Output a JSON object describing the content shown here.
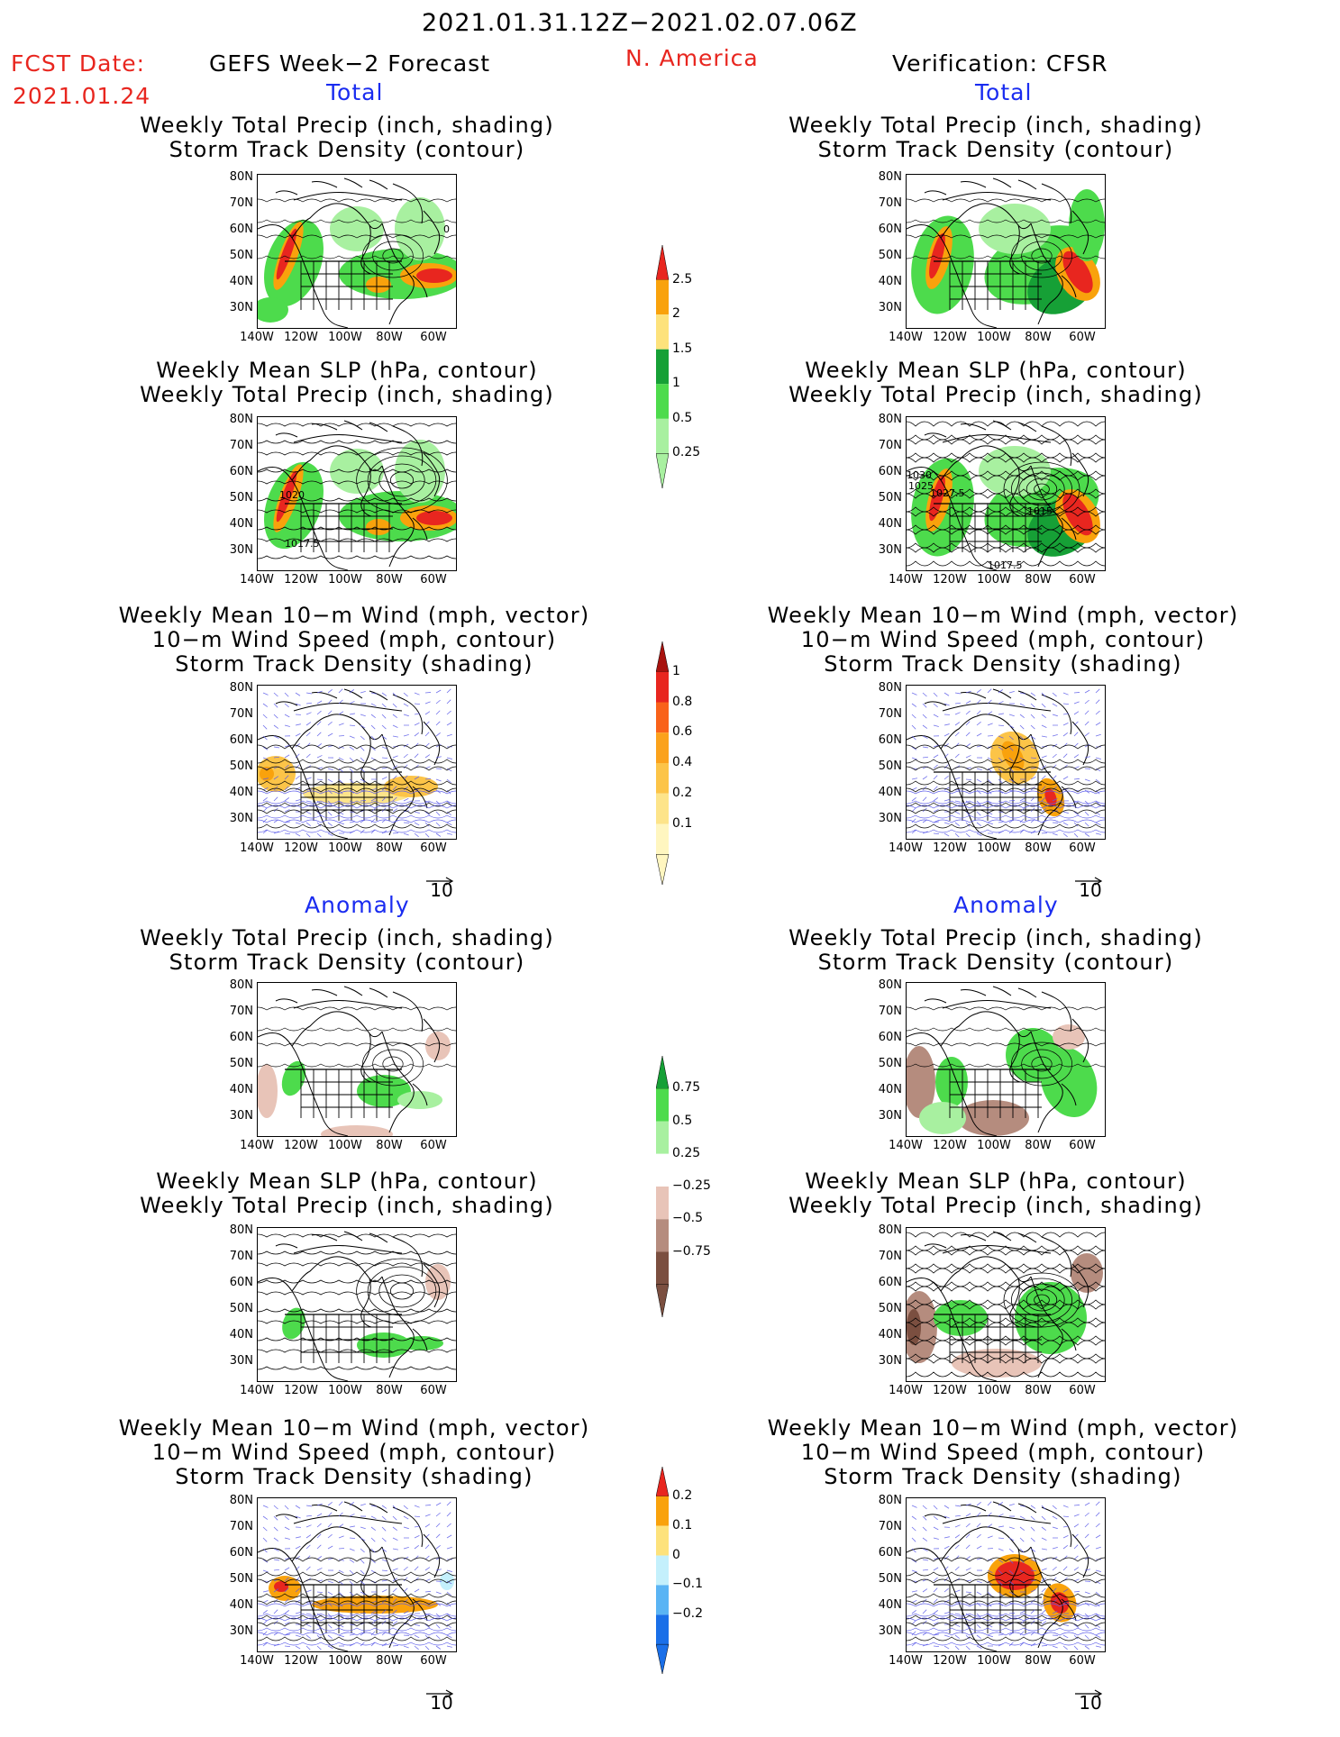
{
  "header": {
    "date_range": "2021.01.31.12Z−2021.02.07.06Z",
    "fcst_label": "FCST Date:",
    "fcst_date": "2021.01.24",
    "left_title": "GEFS Week−2 Forecast",
    "region": "N. America",
    "right_title": "Verification: CFSR"
  },
  "sections": {
    "total": "Total",
    "anomaly": "Anomaly"
  },
  "panel_titles": {
    "precip_storm": [
      "Weekly Total Precip (inch, shading)",
      "Storm Track Density (contour)"
    ],
    "slp_precip": [
      "Weekly Mean SLP (hPa, contour)",
      "Weekly Total Precip (inch, shading)"
    ],
    "wind_storm": [
      "Weekly Mean 10−m Wind (mph, vector)",
      "10−m Wind Speed (mph, contour)",
      "Storm Track Density (shading)"
    ]
  },
  "axes": {
    "lat_ticks": [
      "80N",
      "70N",
      "60N",
      "50N",
      "40N",
      "30N"
    ],
    "lon_ticks": [
      "140W",
      "120W",
      "100W",
      "80W",
      "60W"
    ]
  },
  "vector_ref": "10",
  "contour_labels": {
    "fc_slp": [
      "1020",
      "1017.5"
    ],
    "obs_slp": [
      "1030",
      "1025",
      "1027.5",
      "1015",
      "1017.5"
    ],
    "fc_precip_total": [
      "0"
    ]
  },
  "colorbars": {
    "precip_total": {
      "labels": [
        "2.5",
        "2",
        "1.5",
        "1",
        "0.5",
        "0.25"
      ],
      "colors": [
        "#e8261f",
        "#f9a20c",
        "#fde27c",
        "#16a036",
        "#4ddb4c",
        "#a8f0a0"
      ]
    },
    "storm_total": {
      "labels": [
        "1",
        "0.8",
        "0.6",
        "0.4",
        "0.2",
        "0.1"
      ],
      "colors": [
        "#a8120e",
        "#e8261f",
        "#f9621a",
        "#fba21c",
        "#fcc448",
        "#fde48a",
        "#fff6c0"
      ]
    },
    "precip_anom": {
      "labels": [
        "0.75",
        "0.5",
        "0.25",
        "−0.25",
        "−0.5",
        "−0.75"
      ],
      "colors": [
        "#16a036",
        "#4ddb4c",
        "#a8f0a0",
        "#ffffff",
        "#e8c4b8",
        "#b58c7e",
        "#7b4f40"
      ]
    },
    "storm_anom": {
      "labels": [
        "0.2",
        "0.1",
        "0",
        "−0.1",
        "−0.2"
      ],
      "colors": [
        "#e8261f",
        "#f9a20c",
        "#fde27c",
        "#c4f0fc",
        "#5ab4f4",
        "#1a6fe8"
      ]
    }
  },
  "colors": {
    "header_red": "#e8261f",
    "section_blue": "#1a2cf0",
    "wind_contour_blue": "#5a5ae8"
  }
}
